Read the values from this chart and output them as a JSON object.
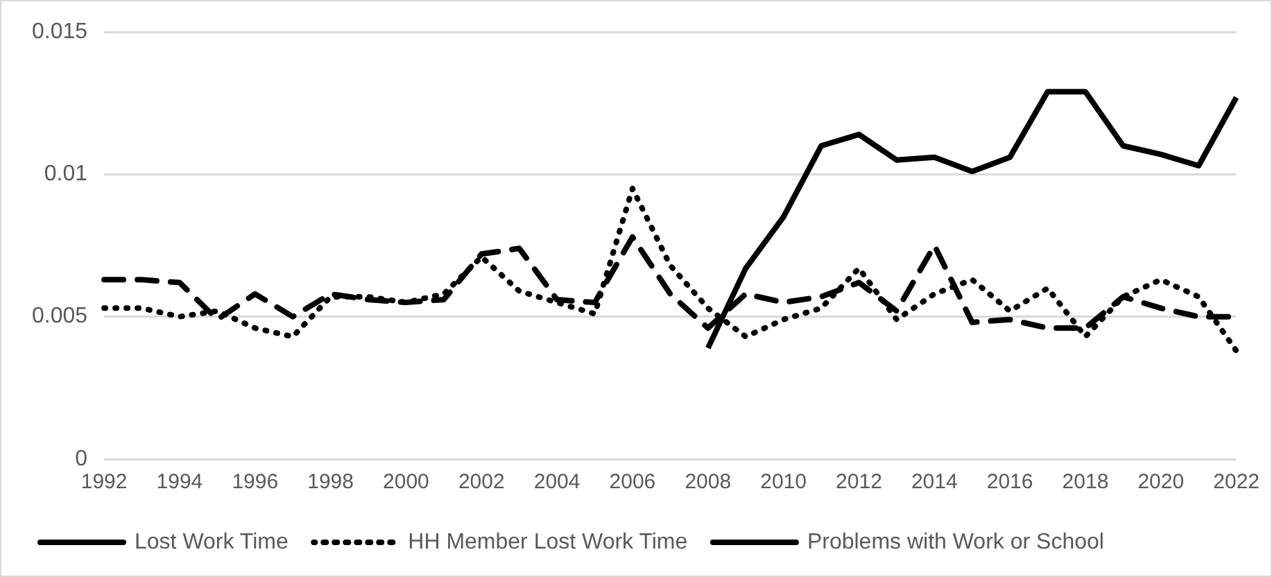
{
  "chart_data": {
    "type": "line",
    "categories": [
      "1992",
      null,
      "1994",
      null,
      "1996",
      null,
      "1998",
      null,
      "2000",
      null,
      "2002",
      null,
      "2004",
      null,
      "2006",
      null,
      "2008",
      null,
      "2010",
      null,
      "2012",
      null,
      "2014",
      null,
      "2016",
      null,
      "2018",
      null,
      "2020",
      null,
      "2022"
    ],
    "series": [
      {
        "name": "Lost Work Time",
        "color": "#000000",
        "line_style": "dashed",
        "values": [
          0.0063,
          0.0063,
          0.0062,
          0.0049,
          0.0058,
          0.005,
          0.0058,
          0.0056,
          0.0055,
          0.0056,
          0.0072,
          0.0074,
          0.0056,
          0.0055,
          0.0078,
          0.0058,
          0.0046,
          0.0058,
          0.0055,
          0.0057,
          0.0062,
          0.0052,
          0.0075,
          0.0048,
          0.0049,
          0.0046,
          0.0046,
          0.0057,
          0.0053,
          0.005,
          0.005
        ]
      },
      {
        "name": "HH Member Lost Work Time",
        "color": "#000000",
        "line_style": "dotted",
        "values": [
          0.0053,
          0.0053,
          0.005,
          0.0052,
          0.0046,
          0.0043,
          0.0057,
          0.0057,
          0.0055,
          0.0058,
          0.0071,
          0.0059,
          0.0055,
          0.0051,
          0.0095,
          0.0068,
          0.0053,
          0.0043,
          0.0049,
          0.0053,
          0.0067,
          0.0049,
          0.0058,
          0.0063,
          0.0052,
          0.006,
          0.0043,
          0.0057,
          0.0063,
          0.0057,
          0.0038
        ]
      },
      {
        "name": "Problems with Work or School",
        "color": "#000000",
        "line_style": "solid",
        "values": [
          null,
          null,
          null,
          null,
          null,
          null,
          null,
          null,
          null,
          null,
          null,
          null,
          null,
          null,
          null,
          null,
          0.0039,
          0.0067,
          0.0085,
          0.011,
          0.0114,
          0.0105,
          0.0106,
          0.0101,
          0.0106,
          0.0129,
          0.0129,
          0.011,
          0.0107,
          0.0103,
          0.0127
        ]
      }
    ],
    "ylim": [
      0,
      0.015
    ],
    "yticks": [
      0,
      0.005,
      0.01,
      0.015
    ],
    "grid": "y",
    "legend": "bottom",
    "marker": "none"
  }
}
